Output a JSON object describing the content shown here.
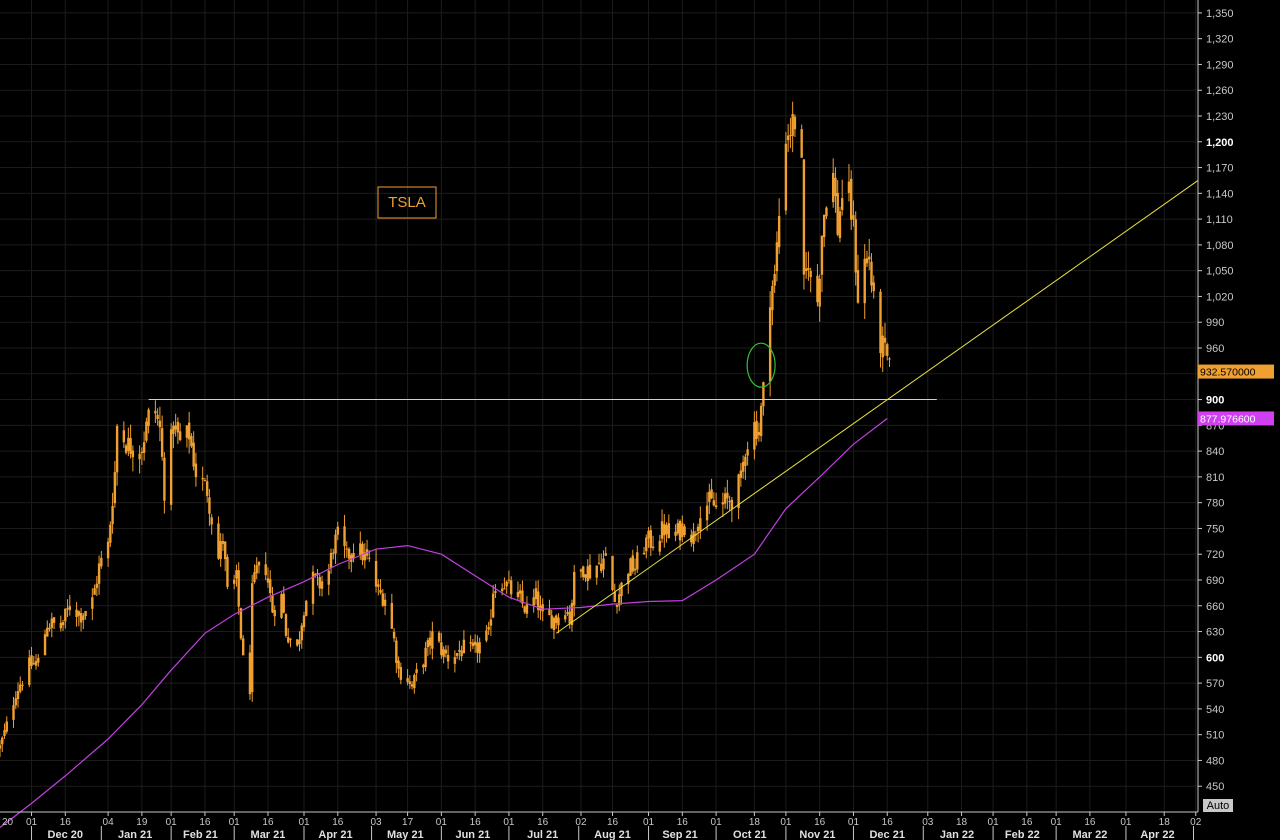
{
  "chart_data": {
    "type": "candlestick",
    "ticker": "TSLA",
    "colors": {
      "background": "#000000",
      "grid": "#1c1c1c",
      "candles": "#f0a030",
      "moving_average": "#c040e0",
      "trendlines": "#e8e040",
      "marker_circle": "#30c030",
      "last_price_badge": "#f0a030",
      "ma_badge": "#d040f0"
    },
    "y_axis": {
      "min": 420,
      "max": 1365,
      "ticks": [
        450,
        480,
        510,
        540,
        570,
        600,
        630,
        660,
        690,
        720,
        750,
        780,
        810,
        840,
        870,
        900,
        930,
        960,
        990,
        1020,
        1050,
        1080,
        1110,
        1140,
        1170,
        1200,
        1230,
        1260,
        1290,
        1320,
        1350
      ],
      "tick_labels": [
        "450",
        "480",
        "510",
        "540",
        "570",
        "600",
        "630",
        "660",
        "690",
        "720",
        "750",
        "780",
        "810",
        "840",
        "870",
        "900",
        "930",
        "960",
        "990",
        "1,020",
        "1,050",
        "1,080",
        "1,110",
        "1,140",
        "1,170",
        "1,200",
        "1,230",
        "1,260",
        "1,290",
        "1,320",
        "1,350"
      ],
      "bold_ticks": [
        "600",
        "900",
        "1,200"
      ],
      "auto_label": "Auto"
    },
    "x_axis": {
      "start": "2020-11-17",
      "end": "2022-05-03",
      "day_ticks": [
        {
          "date": "2020-12-01",
          "label": "01"
        },
        {
          "date": "2020-12-16",
          "label": "16"
        },
        {
          "date": "2021-01-04",
          "label": "04"
        },
        {
          "date": "2021-01-19",
          "label": "19"
        },
        {
          "date": "2021-02-01",
          "label": "01"
        },
        {
          "date": "2021-02-16",
          "label": "16"
        },
        {
          "date": "2021-03-01",
          "label": "01"
        },
        {
          "date": "2021-03-16",
          "label": "16"
        },
        {
          "date": "2021-04-01",
          "label": "01"
        },
        {
          "date": "2021-04-16",
          "label": "16"
        },
        {
          "date": "2021-05-03",
          "label": "03"
        },
        {
          "date": "2021-05-17",
          "label": "17"
        },
        {
          "date": "2021-06-01",
          "label": "01"
        },
        {
          "date": "2021-06-16",
          "label": "16"
        },
        {
          "date": "2021-07-01",
          "label": "01"
        },
        {
          "date": "2021-07-16",
          "label": "16"
        },
        {
          "date": "2021-08-02",
          "label": "02"
        },
        {
          "date": "2021-08-16",
          "label": "16"
        },
        {
          "date": "2021-09-01",
          "label": "01"
        },
        {
          "date": "2021-09-16",
          "label": "16"
        },
        {
          "date": "2021-10-01",
          "label": "01"
        },
        {
          "date": "2021-10-18",
          "label": "18"
        },
        {
          "date": "2021-11-01",
          "label": "01"
        },
        {
          "date": "2021-11-16",
          "label": "16"
        },
        {
          "date": "2021-12-01",
          "label": "01"
        },
        {
          "date": "2021-12-16",
          "label": "16"
        },
        {
          "date": "2022-01-03",
          "label": "03"
        },
        {
          "date": "2022-01-18",
          "label": "18"
        },
        {
          "date": "2022-02-01",
          "label": "01"
        },
        {
          "date": "2022-02-16",
          "label": "16"
        },
        {
          "date": "2022-03-01",
          "label": "01"
        },
        {
          "date": "2022-03-16",
          "label": "16"
        },
        {
          "date": "2022-04-01",
          "label": "01"
        },
        {
          "date": "2022-04-18",
          "label": "18"
        },
        {
          "date": "2022-05-02",
          "label": "02"
        }
      ],
      "month_labels": [
        {
          "center": "2020-12-16",
          "label": "Dec 20"
        },
        {
          "center": "2021-01-16",
          "label": "Jan 21"
        },
        {
          "center": "2021-02-14",
          "label": "Feb 21"
        },
        {
          "center": "2021-03-16",
          "label": "Mar 21"
        },
        {
          "center": "2021-04-15",
          "label": "Apr 21"
        },
        {
          "center": "2021-05-16",
          "label": "May 21"
        },
        {
          "center": "2021-06-15",
          "label": "Jun 21"
        },
        {
          "center": "2021-07-16",
          "label": "Jul 21"
        },
        {
          "center": "2021-08-16",
          "label": "Aug 21"
        },
        {
          "center": "2021-09-15",
          "label": "Sep 21"
        },
        {
          "center": "2021-10-16",
          "label": "Oct 21"
        },
        {
          "center": "2021-11-15",
          "label": "Nov 21"
        },
        {
          "center": "2021-12-16",
          "label": "Dec 21"
        },
        {
          "center": "2022-01-16",
          "label": "Jan 22"
        },
        {
          "center": "2022-02-14",
          "label": "Feb 22"
        },
        {
          "center": "2022-03-16",
          "label": "Mar 22"
        },
        {
          "center": "2022-04-15",
          "label": "Apr 22"
        }
      ],
      "left_edge_label": "20"
    },
    "price_path": [
      [
        "2020-11-17",
        495
      ],
      [
        "2020-11-20",
        520
      ],
      [
        "2020-11-24",
        560
      ],
      [
        "2020-11-30",
        590
      ],
      [
        "2020-12-04",
        595
      ],
      [
        "2020-12-08",
        640
      ],
      [
        "2020-12-14",
        635
      ],
      [
        "2020-12-18",
        660
      ],
      [
        "2020-12-23",
        650
      ],
      [
        "2020-12-28",
        665
      ],
      [
        "2020-12-31",
        705
      ],
      [
        "2021-01-04",
        730
      ],
      [
        "2021-01-07",
        815
      ],
      [
        "2021-01-08",
        870
      ],
      [
        "2021-01-12",
        850
      ],
      [
        "2021-01-14",
        845
      ],
      [
        "2021-01-19",
        845
      ],
      [
        "2021-01-22",
        880
      ],
      [
        "2021-01-25",
        885
      ],
      [
        "2021-01-27",
        865
      ],
      [
        "2021-01-29",
        795
      ],
      [
        "2021-02-02",
        870
      ],
      [
        "2021-02-05",
        850
      ],
      [
        "2021-02-09",
        860
      ],
      [
        "2021-02-12",
        815
      ],
      [
        "2021-02-17",
        795
      ],
      [
        "2021-02-22",
        715
      ],
      [
        "2021-02-24",
        740
      ],
      [
        "2021-02-26",
        675
      ],
      [
        "2021-03-02",
        690
      ],
      [
        "2021-03-05",
        595
      ],
      [
        "2021-03-08",
        565
      ],
      [
        "2021-03-09",
        675
      ],
      [
        "2021-03-11",
        700
      ],
      [
        "2021-03-15",
        705
      ],
      [
        "2021-03-18",
        655
      ],
      [
        "2021-03-22",
        670
      ],
      [
        "2021-03-24",
        630
      ],
      [
        "2021-03-29",
        610
      ],
      [
        "2021-04-01",
        660
      ],
      [
        "2021-04-05",
        690
      ],
      [
        "2021-04-08",
        685
      ],
      [
        "2021-04-12",
        700
      ],
      [
        "2021-04-14",
        730
      ],
      [
        "2021-04-16",
        740
      ],
      [
        "2021-04-20",
        715
      ],
      [
        "2021-04-23",
        730
      ],
      [
        "2021-04-27",
        720
      ],
      [
        "2021-04-30",
        710
      ],
      [
        "2021-05-04",
        675
      ],
      [
        "2021-05-07",
        670
      ],
      [
        "2021-05-11",
        620
      ],
      [
        "2021-05-13",
        585
      ],
      [
        "2021-05-17",
        575
      ],
      [
        "2021-05-19",
        565
      ],
      [
        "2021-05-21",
        580
      ],
      [
        "2021-05-25",
        605
      ],
      [
        "2021-05-28",
        625
      ],
      [
        "2021-06-02",
        605
      ],
      [
        "2021-06-04",
        600
      ],
      [
        "2021-06-08",
        605
      ],
      [
        "2021-06-11",
        610
      ],
      [
        "2021-06-15",
        605
      ],
      [
        "2021-06-18",
        615
      ],
      [
        "2021-06-22",
        625
      ],
      [
        "2021-06-24",
        680
      ],
      [
        "2021-06-28",
        690
      ],
      [
        "2021-07-01",
        680
      ],
      [
        "2021-07-06",
        665
      ],
      [
        "2021-07-09",
        655
      ],
      [
        "2021-07-13",
        670
      ],
      [
        "2021-07-16",
        645
      ],
      [
        "2021-07-19",
        645
      ],
      [
        "2021-07-22",
        645
      ],
      [
        "2021-07-26",
        660
      ],
      [
        "2021-07-28",
        645
      ],
      [
        "2021-07-30",
        690
      ],
      [
        "2021-08-03",
        705
      ],
      [
        "2021-08-06",
        700
      ],
      [
        "2021-08-10",
        710
      ],
      [
        "2021-08-13",
        715
      ],
      [
        "2021-08-17",
        665
      ],
      [
        "2021-08-19",
        675
      ],
      [
        "2021-08-23",
        705
      ],
      [
        "2021-08-26",
        705
      ],
      [
        "2021-08-31",
        735
      ],
      [
        "2021-09-03",
        735
      ],
      [
        "2021-09-08",
        750
      ],
      [
        "2021-09-10",
        740
      ],
      [
        "2021-09-14",
        745
      ],
      [
        "2021-09-17",
        755
      ],
      [
        "2021-09-21",
        740
      ],
      [
        "2021-09-24",
        775
      ],
      [
        "2021-09-28",
        780
      ],
      [
        "2021-10-01",
        775
      ],
      [
        "2021-10-05",
        780
      ],
      [
        "2021-10-08",
        785
      ],
      [
        "2021-10-12",
        805
      ],
      [
        "2021-10-14",
        845
      ],
      [
        "2021-10-18",
        870
      ],
      [
        "2021-10-20",
        865
      ],
      [
        "2021-10-22",
        910
      ],
      [
        "2021-10-25",
        1025
      ],
      [
        "2021-10-27",
        1040
      ],
      [
        "2021-10-29",
        1115
      ],
      [
        "2021-11-01",
        1210
      ],
      [
        "2021-11-03",
        1215
      ],
      [
        "2021-11-05",
        1225
      ],
      [
        "2021-11-08",
        1165
      ],
      [
        "2021-11-09",
        1030
      ],
      [
        "2021-11-11",
        1065
      ],
      [
        "2021-11-12",
        1035
      ],
      [
        "2021-11-15",
        1015
      ],
      [
        "2021-11-17",
        1095
      ],
      [
        "2021-11-19",
        1140
      ],
      [
        "2021-11-22",
        1160
      ],
      [
        "2021-11-24",
        1100
      ],
      [
        "2021-11-26",
        1140
      ],
      [
        "2021-11-29",
        1135
      ],
      [
        "2021-12-01",
        1100
      ],
      [
        "2021-12-03",
        1020
      ],
      [
        "2021-12-06",
        1060
      ],
      [
        "2021-12-08",
        1065
      ],
      [
        "2021-12-10",
        1010
      ],
      [
        "2021-12-13",
        965
      ],
      [
        "2021-12-14",
        960
      ],
      [
        "2021-12-16",
        945
      ],
      [
        "2021-12-17",
        932.57
      ]
    ],
    "moving_average": [
      [
        "2020-11-17",
        402
      ],
      [
        "2020-12-01",
        430
      ],
      [
        "2020-12-16",
        462
      ],
      [
        "2021-01-04",
        505
      ],
      [
        "2021-01-19",
        545
      ],
      [
        "2021-02-01",
        585
      ],
      [
        "2021-02-16",
        628
      ],
      [
        "2021-03-01",
        650
      ],
      [
        "2021-03-16",
        670
      ],
      [
        "2021-04-01",
        688
      ],
      [
        "2021-04-16",
        708
      ],
      [
        "2021-05-03",
        726
      ],
      [
        "2021-05-17",
        730
      ],
      [
        "2021-06-01",
        720
      ],
      [
        "2021-06-16",
        695
      ],
      [
        "2021-07-01",
        670
      ],
      [
        "2021-07-16",
        656
      ],
      [
        "2021-08-02",
        658
      ],
      [
        "2021-08-16",
        662
      ],
      [
        "2021-09-01",
        665
      ],
      [
        "2021-09-16",
        666
      ],
      [
        "2021-10-01",
        690
      ],
      [
        "2021-10-18",
        720
      ],
      [
        "2021-11-01",
        773
      ],
      [
        "2021-11-16",
        810
      ],
      [
        "2021-12-01",
        848
      ],
      [
        "2021-12-16",
        878
      ]
    ],
    "horizontal_line": {
      "value": 900,
      "start": "2021-01-22",
      "end": "2022-01-07"
    },
    "trendline": {
      "start": [
        "2021-07-22",
        628
      ],
      "end": [
        "2022-05-03",
        1155
      ]
    },
    "ellipse_marker": {
      "date": "2021-10-21",
      "value": 940
    },
    "last_price_label": "932.570000",
    "ma_value_label": "877.976600"
  }
}
